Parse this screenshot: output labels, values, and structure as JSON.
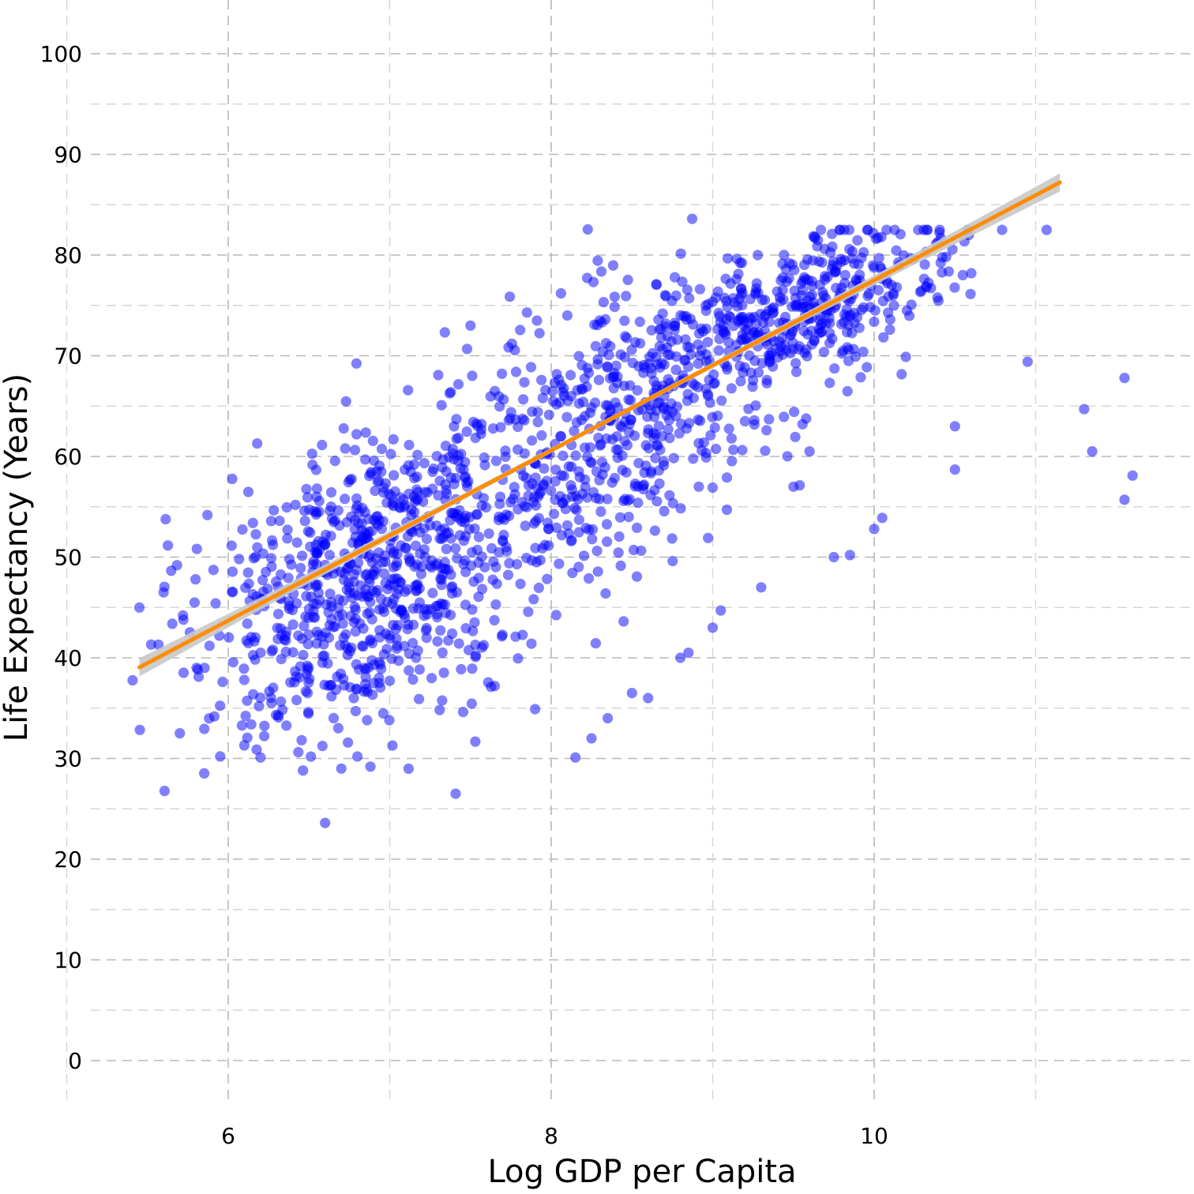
{
  "chart_data": {
    "type": "scatter",
    "xlabel": "Log GDP per Capita",
    "ylabel": "Life Expectancy (Years)",
    "xlim": [
      5.4,
      11.55
    ],
    "ylim": [
      -5,
      105
    ],
    "x_ticks": [
      6,
      8,
      10
    ],
    "x_tick_labels": [
      "6",
      "8",
      "10"
    ],
    "y_ticks": [
      0,
      10,
      20,
      30,
      40,
      50,
      60,
      70,
      80,
      90,
      100
    ],
    "y_tick_labels": [
      "0",
      "10",
      "20",
      "30",
      "40",
      "50",
      "60",
      "70",
      "80",
      "90",
      "100"
    ],
    "grid": true,
    "point_color": "#0000ff",
    "point_opacity": 0.5,
    "fit": {
      "type": "linear",
      "color": "#ff8c00",
      "band_color": "#c8c8c8",
      "x_range": [
        5.45,
        11.15
      ],
      "intercept": -7.0,
      "slope": 8.45,
      "band_halfwidth_ends": 0.9,
      "band_halfwidth_mid": 0.25
    },
    "point_generation": {
      "count": 1700,
      "seed": 42,
      "clusters": [
        {
          "n": 800,
          "x_mean": 6.9,
          "x_sd": 0.55,
          "y_base": 48,
          "y_slope": 6,
          "y_sd": 7.5
        },
        {
          "n": 500,
          "x_mean": 8.4,
          "x_sd": 0.5,
          "y_base": 63,
          "y_slope": 6,
          "y_sd": 7
        },
        {
          "n": 400,
          "x_mean": 9.6,
          "x_sd": 0.45,
          "y_base": 75,
          "y_slope": 5,
          "y_sd": 3.5
        }
      ]
    },
    "outliers": [
      {
        "x": 5.45,
        "y": 45.0
      },
      {
        "x": 5.6,
        "y": 46.5
      },
      {
        "x": 5.7,
        "y": 32.5
      },
      {
        "x": 6.6,
        "y": 23.6
      },
      {
        "x": 8.15,
        "y": 30.1
      },
      {
        "x": 10.95,
        "y": 69.4
      },
      {
        "x": 11.3,
        "y": 64.7
      },
      {
        "x": 11.35,
        "y": 60.5
      },
      {
        "x": 11.55,
        "y": 67.8
      },
      {
        "x": 11.55,
        "y": 55.7
      },
      {
        "x": 11.6,
        "y": 58.1
      },
      {
        "x": 10.5,
        "y": 63.0
      },
      {
        "x": 10.5,
        "y": 58.7
      },
      {
        "x": 10.0,
        "y": 52.8
      },
      {
        "x": 10.05,
        "y": 53.9
      },
      {
        "x": 9.85,
        "y": 50.2
      },
      {
        "x": 9.75,
        "y": 50.0
      },
      {
        "x": 9.5,
        "y": 57.0
      },
      {
        "x": 9.6,
        "y": 60.5
      },
      {
        "x": 9.2,
        "y": 63.5
      },
      {
        "x": 9.3,
        "y": 47.0
      },
      {
        "x": 8.85,
        "y": 40.5
      },
      {
        "x": 8.8,
        "y": 40.0
      },
      {
        "x": 8.5,
        "y": 36.5
      },
      {
        "x": 8.6,
        "y": 36.0
      },
      {
        "x": 8.25,
        "y": 32.0
      },
      {
        "x": 8.35,
        "y": 34.0
      },
      {
        "x": 9.0,
        "y": 43.0
      },
      {
        "x": 9.05,
        "y": 44.7
      },
      {
        "x": 6.7,
        "y": 29.0
      },
      {
        "x": 6.8,
        "y": 30.2
      },
      {
        "x": 6.2,
        "y": 30.1
      },
      {
        "x": 6.1,
        "y": 31.3
      },
      {
        "x": 7.9,
        "y": 34.9
      },
      {
        "x": 8.1,
        "y": 74.0
      },
      {
        "x": 8.3,
        "y": 73.5
      },
      {
        "x": 7.5,
        "y": 73.0
      },
      {
        "x": 7.85,
        "y": 74.3
      }
    ]
  }
}
